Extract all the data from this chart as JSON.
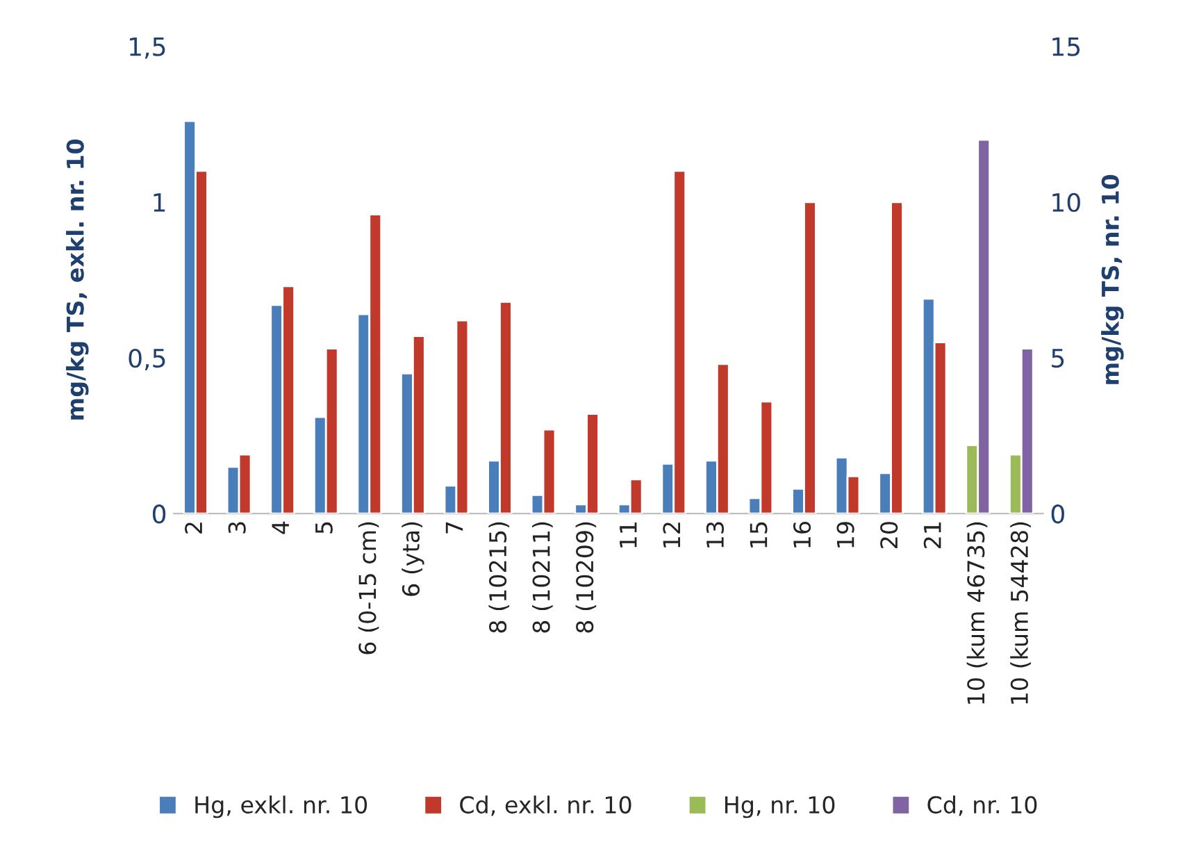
{
  "chart_data": {
    "type": "bar",
    "ylabel": "mg/kg TS, exkl. nr. 10",
    "y2label": "mg/kg TS, nr. 10",
    "categories": [
      "2",
      "3",
      "4",
      "5",
      "6 (0-15 cm)",
      "6 (yta)",
      "7",
      "8 (10215)",
      "8 (10211)",
      "8 (10209)",
      "11",
      "12",
      "13",
      "15",
      "16",
      "19",
      "20",
      "21",
      "10 (kum 46735)",
      "10 (kum 54428)"
    ],
    "series": [
      {
        "name": "Hg, exkl. nr. 10",
        "color": "#4a7ebb",
        "values": [
          1.26,
          0.15,
          0.67,
          0.31,
          0.64,
          0.45,
          0.09,
          0.17,
          0.06,
          0.03,
          0.03,
          0.16,
          0.17,
          0.05,
          0.08,
          0.18,
          0.13,
          0.69,
          null,
          null
        ]
      },
      {
        "name": "Cd, exkl. nr. 10",
        "color": "#c0392b",
        "values": [
          1.1,
          0.19,
          0.73,
          0.53,
          0.96,
          0.57,
          0.62,
          0.68,
          0.27,
          0.32,
          0.11,
          1.1,
          0.48,
          0.36,
          1.0,
          0.12,
          1.0,
          0.55,
          null,
          null
        ]
      },
      {
        "name": "Hg, nr. 10",
        "color": "#9bbb59",
        "axis": "y2",
        "values": [
          null,
          null,
          null,
          null,
          null,
          null,
          null,
          null,
          null,
          null,
          null,
          null,
          null,
          null,
          null,
          null,
          null,
          null,
          2.2,
          1.9
        ]
      },
      {
        "name": "Cd, nr. 10",
        "color": "#8064a2",
        "axis": "y2",
        "values": [
          null,
          null,
          null,
          null,
          null,
          null,
          null,
          null,
          null,
          null,
          null,
          null,
          null,
          null,
          null,
          null,
          null,
          null,
          12.0,
          5.3
        ]
      }
    ],
    "ylim": [
      0,
      1.5
    ],
    "yticks": [
      0,
      {
        "value": 0.5,
        "label": "0,5"
      },
      1,
      {
        "value": 1.5,
        "label": "1,5"
      }
    ],
    "y2lim": [
      0,
      15
    ],
    "y2ticks": [
      0,
      5,
      10,
      15
    ],
    "grid": false,
    "legend": "bottom"
  }
}
